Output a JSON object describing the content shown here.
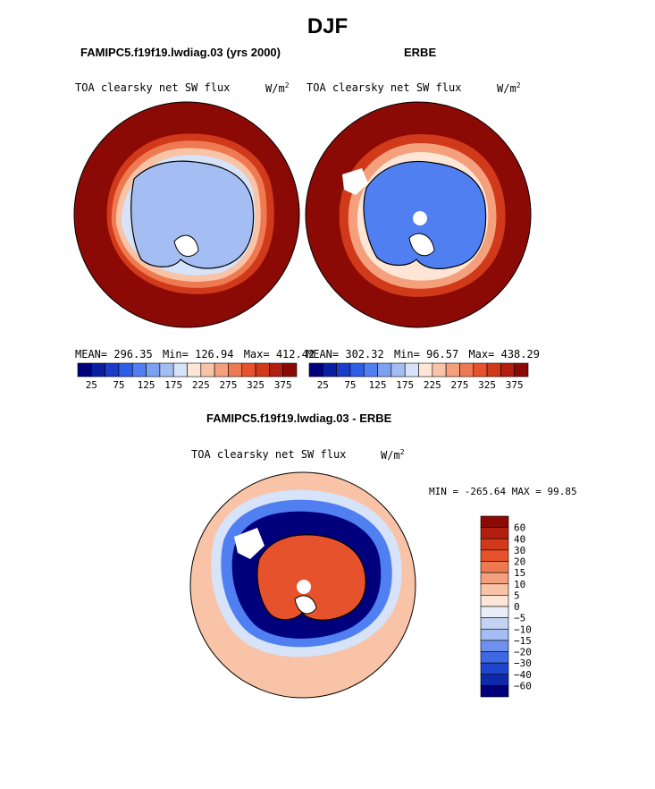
{
  "title": "DJF",
  "panels": {
    "model": {
      "title": "FAMIPC5.f19f19.lwdiag.03 (yrs 2000)",
      "variable": "TOA clearsky net SW flux",
      "units": "W/m",
      "units_sup": "2",
      "stats": {
        "mean_label": "MEAN=",
        "mean": "296.35",
        "min_label": "Min=",
        "min": "126.94",
        "max_label": "Max=",
        "max": "412.42"
      }
    },
    "obs": {
      "title": "ERBE",
      "variable": "TOA clearsky net SW flux",
      "units": "W/m",
      "units_sup": "2",
      "stats": {
        "mean_label": "MEAN=",
        "mean": "302.32",
        "min_label": "Min=",
        "min": "96.57",
        "max_label": "Max=",
        "max": "438.29"
      }
    },
    "diff": {
      "title": "FAMIPC5.f19f19.lwdiag.03 - ERBE",
      "variable": "TOA clearsky net SW flux",
      "units": "W/m",
      "units_sup": "2",
      "range_text": "MIN = -265.64  MAX =  99.85"
    }
  },
  "chart_data": [
    {
      "type": "heatmap",
      "projection": "polar-stereographic-south",
      "title": "FAMIPC5.f19f19.lwdiag.03 (yrs 2000)",
      "variable": "TOA clearsky net SW flux",
      "units": "W/m2",
      "mean": 296.35,
      "min": 126.94,
      "max": 412.42,
      "colorbar": {
        "tick_labels": [
          "25",
          "75",
          "125",
          "175",
          "225",
          "275",
          "325",
          "375"
        ],
        "levels": [
          0,
          25,
          50,
          75,
          100,
          125,
          150,
          175,
          200,
          225,
          250,
          275,
          300,
          325,
          350,
          375,
          400
        ],
        "colors": [
          "#00007d",
          "#0a1fa0",
          "#1a3cc8",
          "#2f5ee6",
          "#4f7ff0",
          "#7da0f0",
          "#a4bdf2",
          "#d6e3f8",
          "#fde6d6",
          "#f8c3a6",
          "#f4a07c",
          "#ef7a52",
          "#e6522c",
          "#d03a1a",
          "#b21f0e",
          "#8c0a05"
        ]
      }
    },
    {
      "type": "heatmap",
      "projection": "polar-stereographic-south",
      "title": "ERBE",
      "variable": "TOA clearsky net SW flux",
      "units": "W/m2",
      "mean": 302.32,
      "min": 96.57,
      "max": 438.29,
      "colorbar": {
        "tick_labels": [
          "25",
          "75",
          "125",
          "175",
          "225",
          "275",
          "325",
          "375"
        ],
        "levels": [
          0,
          25,
          50,
          75,
          100,
          125,
          150,
          175,
          200,
          225,
          250,
          275,
          300,
          325,
          350,
          375,
          400
        ],
        "colors": [
          "#00007d",
          "#0a1fa0",
          "#1a3cc8",
          "#2f5ee6",
          "#4f7ff0",
          "#7da0f0",
          "#a4bdf2",
          "#d6e3f8",
          "#fde6d6",
          "#f8c3a6",
          "#f4a07c",
          "#ef7a52",
          "#e6522c",
          "#d03a1a",
          "#b21f0e",
          "#8c0a05"
        ]
      }
    },
    {
      "type": "heatmap",
      "projection": "polar-stereographic-south",
      "title": "FAMIPC5.f19f19.lwdiag.03 - ERBE",
      "variable": "TOA clearsky net SW flux",
      "units": "W/m2",
      "min": -265.64,
      "max": 99.85,
      "colorbar": {
        "tick_labels": [
          "60",
          "40",
          "30",
          "20",
          "15",
          "10",
          "5",
          "0",
          "−5",
          "−10",
          "−15",
          "−20",
          "−30",
          "−40",
          "−60"
        ],
        "colors_top_to_bottom": [
          "#8c0a05",
          "#b21f0e",
          "#d03a1a",
          "#e6522c",
          "#ef7a52",
          "#f4a07c",
          "#f8c3a6",
          "#fde6d6",
          "#e8eef8",
          "#c3d3f2",
          "#a4bdf2",
          "#6f90ee",
          "#3f68e4",
          "#1f45cc",
          "#0e2aa8",
          "#00007d"
        ]
      }
    }
  ]
}
